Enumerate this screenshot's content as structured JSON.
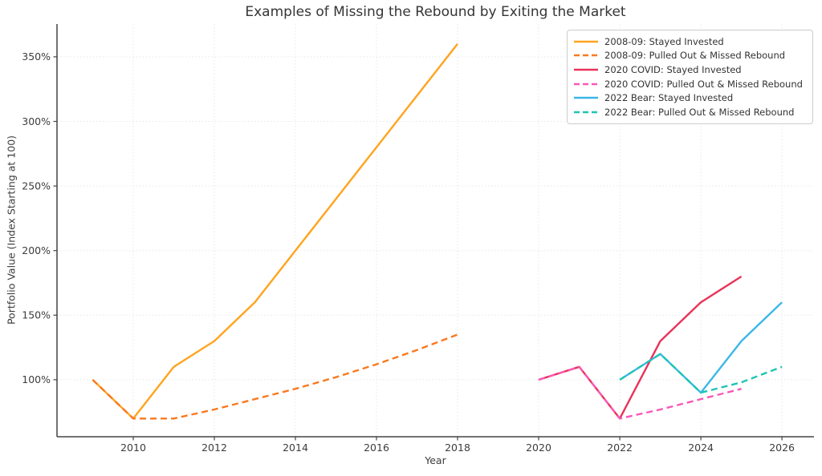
{
  "chart_data": {
    "type": "line",
    "title": "Examples of Missing the Rebound by Exiting the Market",
    "xlabel": "Year",
    "ylabel": "Portfolio Value (Index Starting at 100)",
    "x_ticks": [
      2010,
      2012,
      2014,
      2016,
      2018,
      2020,
      2022,
      2024,
      2026
    ],
    "x_tick_labels": [
      "2010",
      "2012",
      "2014",
      "2016",
      "2018",
      "2020",
      "2022",
      "2024",
      "2026"
    ],
    "y_ticks": [
      100,
      150,
      200,
      250,
      300,
      350
    ],
    "y_tick_labels": [
      "100%",
      "150%",
      "200%",
      "250%",
      "300%",
      "350%"
    ],
    "xlim": [
      2008.12,
      2026.79
    ],
    "ylim": [
      55.9,
      375.4
    ],
    "grid": true,
    "grid_style": "dotted",
    "legend_position": "upper right",
    "colors": {
      "amber": "#FFA41E",
      "dark_orange": "#F9791E",
      "crimson": "#E93358",
      "pink": "#F858B8",
      "sky_blue": "#3CB7E8",
      "teal": "#1EC4B2"
    },
    "series": [
      {
        "name": "2008-09: Stayed Invested",
        "color": "#FFA41E",
        "style": "solid",
        "x": [
          2009,
          2010,
          2011,
          2012,
          2013,
          2014,
          2015,
          2016,
          2017,
          2018
        ],
        "y": [
          100,
          70,
          110,
          130,
          160,
          200,
          240,
          280,
          320,
          360
        ]
      },
      {
        "name": "2008-09: Pulled Out & Missed Rebound",
        "color": "#F9791E",
        "style": "dashed",
        "x": [
          2009,
          2010,
          2011,
          2012,
          2013,
          2014,
          2015,
          2016,
          2017,
          2018
        ],
        "y": [
          100,
          70,
          70,
          77,
          85,
          93,
          102,
          112,
          123,
          135
        ]
      },
      {
        "name": "2020 COVID: Stayed Invested",
        "color": "#E93358",
        "style": "solid",
        "x": [
          2020,
          2021,
          2022,
          2023,
          2024,
          2025
        ],
        "y": [
          100,
          110,
          70,
          130,
          160,
          180
        ]
      },
      {
        "name": "2020 COVID: Pulled Out & Missed Rebound",
        "color": "#F858B8",
        "style": "dashed",
        "x": [
          2020,
          2021,
          2022,
          2023,
          2024,
          2025
        ],
        "y": [
          100,
          110,
          70,
          77,
          85,
          93
        ]
      },
      {
        "name": "2022 Bear: Stayed Invested",
        "color": "#3CB7E8",
        "style": "solid",
        "x": [
          2022,
          2023,
          2024,
          2025,
          2026
        ],
        "y": [
          100,
          120,
          90,
          130,
          160
        ]
      },
      {
        "name": "2022 Bear: Pulled Out & Missed Rebound",
        "color": "#1EC4B2",
        "style": "dashed",
        "x": [
          2022,
          2023,
          2024,
          2025,
          2026
        ],
        "y": [
          100,
          120,
          90,
          98,
          110
        ]
      }
    ]
  }
}
